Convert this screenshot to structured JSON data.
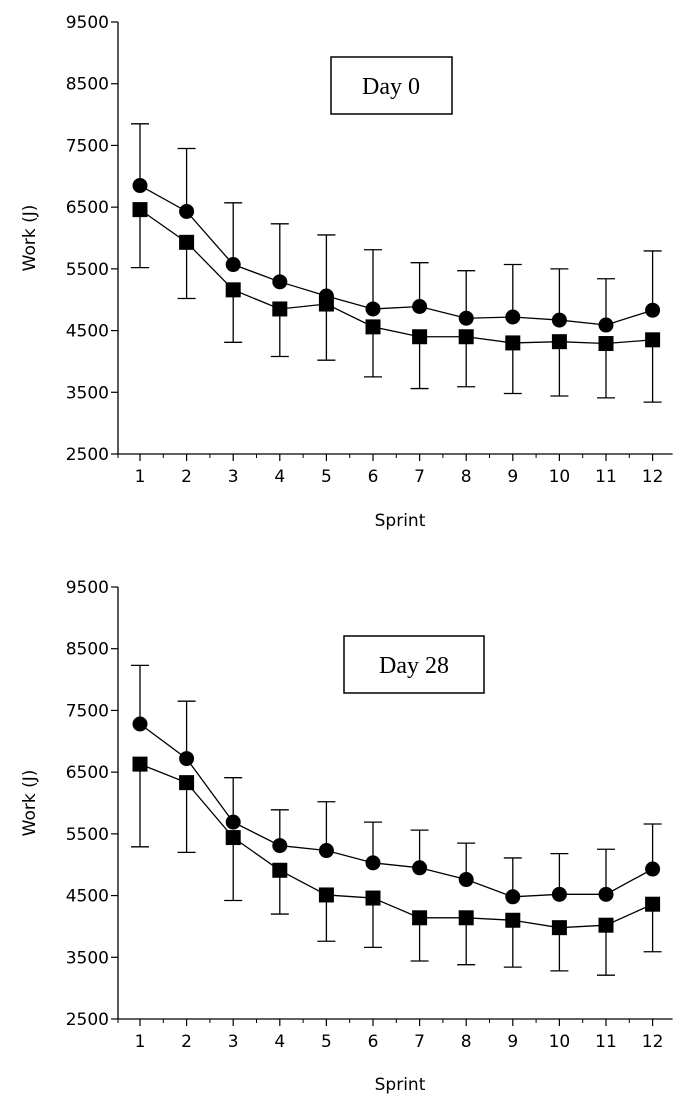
{
  "chart_data": [
    {
      "type": "line",
      "title": "",
      "annotation": "Day 0",
      "xlabel": "Sprint",
      "ylabel": "Work (J)",
      "x": [
        1,
        2,
        3,
        4,
        5,
        6,
        7,
        8,
        9,
        10,
        11,
        12
      ],
      "xticks": [
        "1",
        "2",
        "3",
        "4",
        "5",
        "6",
        "7",
        "8",
        "9",
        "10",
        "11",
        "12"
      ],
      "ylim": [
        2500,
        9500
      ],
      "yticks": [
        "2500",
        "3500",
        "4500",
        "5500",
        "6500",
        "7500",
        "8500",
        "9500"
      ],
      "grid": false,
      "legend": "none",
      "series": [
        {
          "marker": "circle",
          "values": [
            6850,
            6430,
            5570,
            5290,
            5060,
            4850,
            4890,
            4700,
            4720,
            4670,
            4590,
            4830
          ],
          "error_up": [
            7850,
            7450,
            6570,
            6230,
            6050,
            5810,
            5600,
            5470,
            5570,
            5500,
            5340,
            5790
          ]
        },
        {
          "marker": "square",
          "values": [
            6460,
            5930,
            5160,
            4850,
            4930,
            4560,
            4400,
            4400,
            4300,
            4320,
            4290,
            4350
          ],
          "error_down": [
            5520,
            5020,
            4310,
            4080,
            4020,
            3750,
            3560,
            3590,
            3480,
            3440,
            3410,
            3340
          ]
        }
      ]
    },
    {
      "type": "line",
      "title": "",
      "annotation": "Day 28",
      "xlabel": "Sprint",
      "ylabel": "Work (J)",
      "x": [
        1,
        2,
        3,
        4,
        5,
        6,
        7,
        8,
        9,
        10,
        11,
        12
      ],
      "xticks": [
        "1",
        "2",
        "3",
        "4",
        "5",
        "6",
        "7",
        "8",
        "9",
        "10",
        "11",
        "12"
      ],
      "ylim": [
        2500,
        9500
      ],
      "yticks": [
        "2500",
        "3500",
        "4500",
        "5500",
        "6500",
        "7500",
        "8500",
        "9500"
      ],
      "grid": false,
      "legend": "none",
      "series": [
        {
          "marker": "circle",
          "values": [
            7280,
            6720,
            5690,
            5310,
            5230,
            5030,
            4950,
            4760,
            4480,
            4520,
            4520,
            4930
          ],
          "error_up": [
            8230,
            7650,
            6410,
            5890,
            6020,
            5690,
            5560,
            5350,
            5110,
            5180,
            5250,
            5660
          ]
        },
        {
          "marker": "square",
          "values": [
            6630,
            6330,
            5440,
            4910,
            4510,
            4460,
            4140,
            4140,
            4100,
            3980,
            4020,
            4360
          ],
          "error_down": [
            5290,
            5200,
            4420,
            4200,
            3760,
            3660,
            3440,
            3380,
            3340,
            3280,
            3210,
            3590
          ]
        }
      ]
    }
  ]
}
